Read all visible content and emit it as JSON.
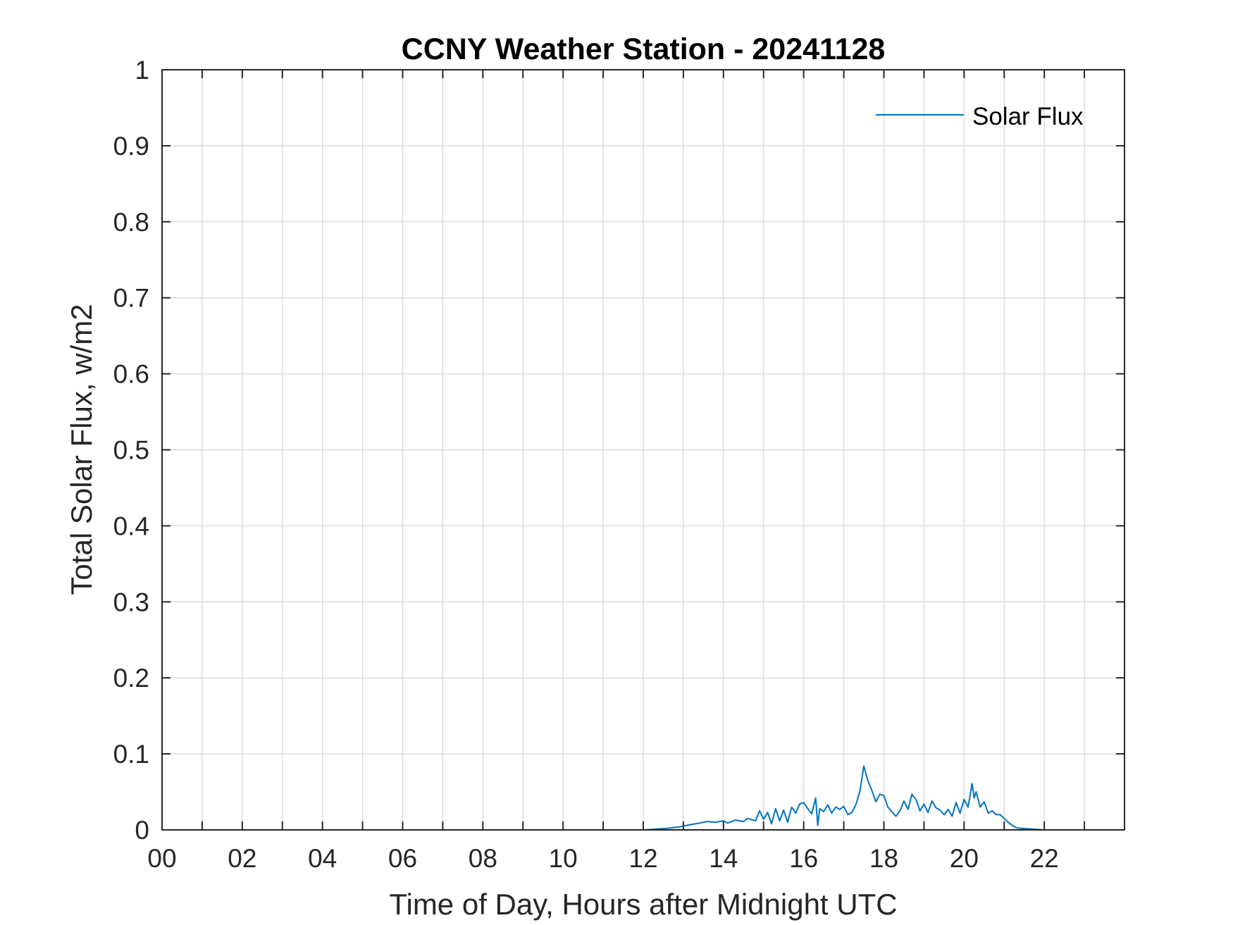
{
  "chart_data": {
    "type": "line",
    "title": "CCNY Weather Station - 20241128",
    "xlabel": "Time of Day, Hours after Midnight UTC",
    "ylabel": "Total Solar Flux, w/m2",
    "xlim": [
      0,
      24
    ],
    "ylim": [
      0,
      1
    ],
    "grid": true,
    "legend_location": "top-right",
    "x_ticks": [
      0,
      2,
      4,
      6,
      8,
      10,
      12,
      14,
      16,
      18,
      20,
      22
    ],
    "x_tick_labels": [
      "00",
      "02",
      "04",
      "06",
      "08",
      "10",
      "12",
      "14",
      "16",
      "18",
      "20",
      "22"
    ],
    "y_ticks": [
      0,
      0.1,
      0.2,
      0.3,
      0.4,
      0.5,
      0.6,
      0.7,
      0.8,
      0.9,
      1
    ],
    "y_tick_labels": [
      "0",
      "0.1",
      "0.2",
      "0.3",
      "0.4",
      "0.5",
      "0.6",
      "0.7",
      "0.8",
      "0.9",
      "1"
    ],
    "colors": {
      "series": "#0072BD",
      "grid": "#dcdcdc",
      "axes": "#262626"
    },
    "series": [
      {
        "name": "Solar Flux",
        "x": [
          0,
          12.0,
          12.3,
          12.6,
          12.9,
          13.2,
          13.4,
          13.6,
          13.8,
          14.0,
          14.1,
          14.3,
          14.5,
          14.6,
          14.8,
          14.9,
          15.0,
          15.1,
          15.2,
          15.3,
          15.4,
          15.5,
          15.6,
          15.7,
          15.8,
          15.9,
          16.0,
          16.1,
          16.2,
          16.3,
          16.35,
          16.4,
          16.5,
          16.6,
          16.7,
          16.8,
          16.9,
          17.0,
          17.1,
          17.2,
          17.3,
          17.4,
          17.5,
          17.6,
          17.7,
          17.8,
          17.9,
          18.0,
          18.1,
          18.2,
          18.3,
          18.4,
          18.5,
          18.6,
          18.7,
          18.8,
          18.9,
          19.0,
          19.1,
          19.2,
          19.3,
          19.4,
          19.5,
          19.6,
          19.7,
          19.8,
          19.9,
          20.0,
          20.1,
          20.2,
          20.25,
          20.3,
          20.4,
          20.5,
          20.6,
          20.7,
          20.8,
          20.9,
          21.0,
          21.1,
          21.2,
          21.3,
          21.4,
          21.6,
          21.8,
          22.0,
          22.5,
          24.0
        ],
        "y": [
          0,
          0,
          0.001,
          0.002,
          0.004,
          0.007,
          0.009,
          0.011,
          0.01,
          0.012,
          0.009,
          0.013,
          0.011,
          0.015,
          0.012,
          0.025,
          0.014,
          0.023,
          0.008,
          0.028,
          0.012,
          0.026,
          0.01,
          0.03,
          0.022,
          0.034,
          0.036,
          0.028,
          0.021,
          0.042,
          0.006,
          0.028,
          0.024,
          0.033,
          0.022,
          0.03,
          0.027,
          0.031,
          0.02,
          0.023,
          0.033,
          0.05,
          0.084,
          0.065,
          0.052,
          0.037,
          0.047,
          0.045,
          0.03,
          0.024,
          0.018,
          0.025,
          0.038,
          0.027,
          0.047,
          0.04,
          0.025,
          0.034,
          0.023,
          0.038,
          0.029,
          0.026,
          0.02,
          0.027,
          0.018,
          0.036,
          0.022,
          0.04,
          0.03,
          0.061,
          0.042,
          0.05,
          0.03,
          0.037,
          0.022,
          0.025,
          0.02,
          0.02,
          0.015,
          0.01,
          0.006,
          0.003,
          0.002,
          0.0015,
          0.0008,
          0,
          0,
          0
        ]
      }
    ]
  }
}
